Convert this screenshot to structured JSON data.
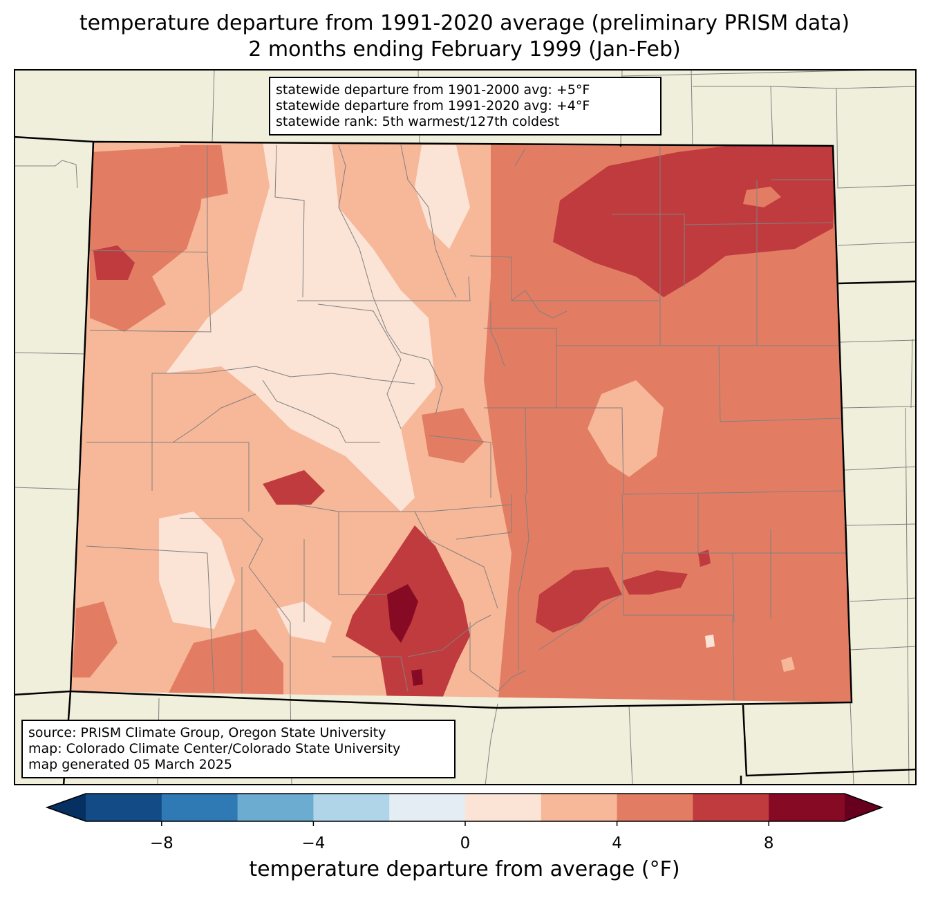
{
  "title": {
    "line1": "temperature departure from 1991-2020 average (preliminary PRISM data)",
    "line2": "2 months ending February 1999 (Jan-Feb)"
  },
  "stats": {
    "line1": "statewide departure from 1901-2000 avg: +5°F",
    "line2": "statewide departure from 1991-2020 avg: +4°F",
    "line3": "statewide rank: 5th warmest/127th coldest"
  },
  "source": {
    "line1": "source: PRISM Climate Group, Oregon State University",
    "line2": "map: Colorado Climate Center/Colorado State University",
    "line3": "map generated 05 March 2025"
  },
  "colorbar": {
    "label": "temperature departure from average (°F)",
    "min": -10,
    "max": 10,
    "step": 2,
    "extend": "both",
    "ticks": [
      {
        "value": -8,
        "label": "−8"
      },
      {
        "value": -4,
        "label": "−4"
      },
      {
        "value": 0,
        "label": "0"
      },
      {
        "value": 4,
        "label": "4"
      },
      {
        "value": 8,
        "label": "8"
      }
    ],
    "colors": [
      "#053061",
      "#134b87",
      "#2f79b5",
      "#6bacd0",
      "#b0d5e8",
      "#e3edf3",
      "#fbe3d6",
      "#f7b799",
      "#e27d64",
      "#c03b3e",
      "#870a24",
      "#67001f"
    ]
  },
  "map": {
    "land_color": "#efefdc",
    "county_line_color": "#808080",
    "state_line_color": "#000000"
  }
}
